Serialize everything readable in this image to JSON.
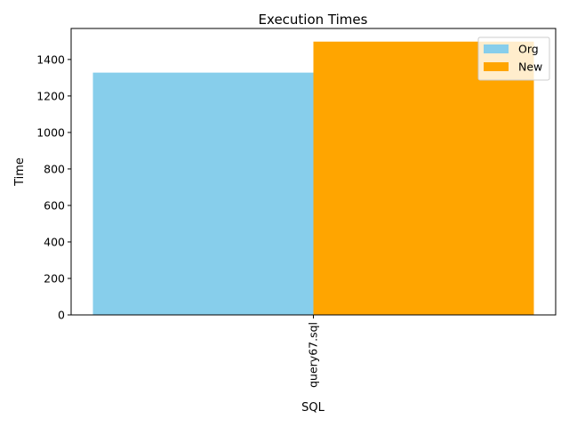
{
  "chart_data": {
    "type": "bar",
    "title": "Execution Times",
    "xlabel": "SQL",
    "ylabel": "Time",
    "categories": [
      "query67.sql"
    ],
    "series": [
      {
        "name": "Org",
        "values": [
          1328
        ],
        "color": "#87ceeb"
      },
      {
        "name": "New",
        "values": [
          1498
        ],
        "color": "#ffa500"
      }
    ],
    "ylim": [
      0,
      1570
    ],
    "yticks": [
      0,
      200,
      400,
      600,
      800,
      1000,
      1200,
      1400
    ],
    "grid": false,
    "legend_position": "top-right"
  }
}
